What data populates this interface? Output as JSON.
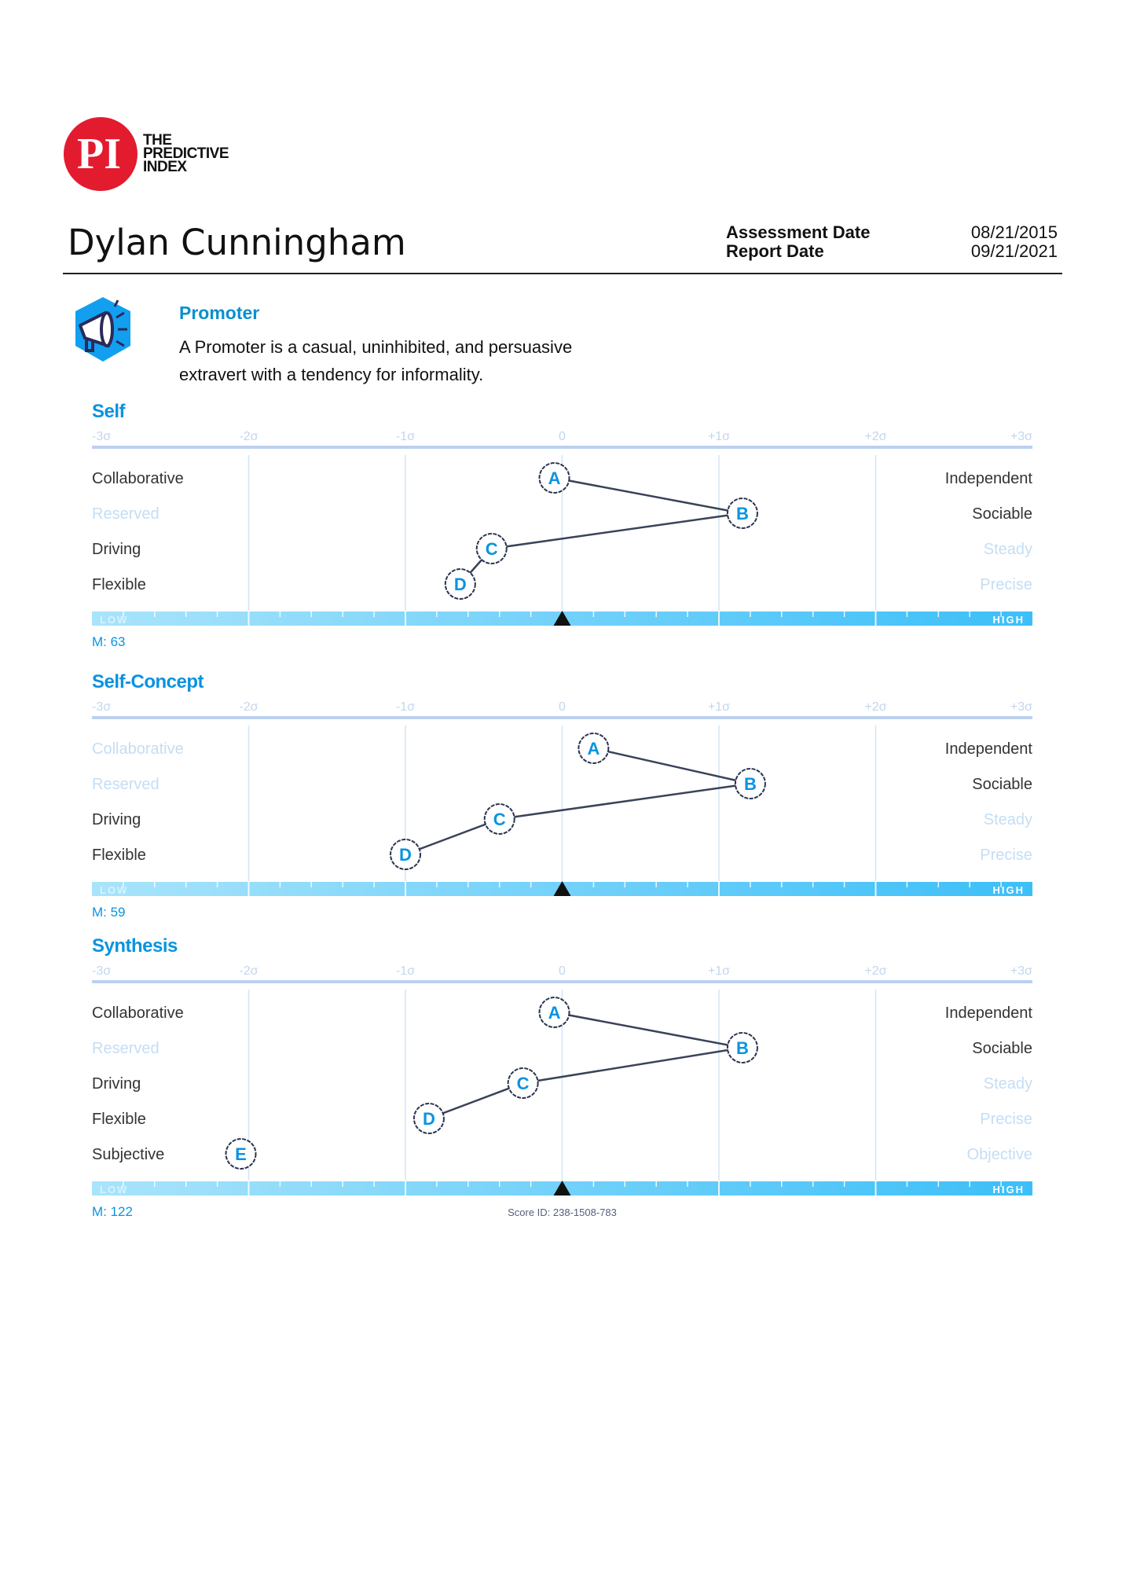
{
  "logo": {
    "mark": "PI",
    "text_lines": [
      "THE",
      "PREDICTIVE",
      "INDEX"
    ],
    "color": "#e31b2f"
  },
  "person": {
    "name": "Dylan Cunningham"
  },
  "dates": {
    "assessment_label": "Assessment Date",
    "assessment_value": "08/21/2015",
    "report_label": "Report Date",
    "report_value": "09/21/2021"
  },
  "profile": {
    "icon": "megaphone-icon",
    "title": "Promoter",
    "description_lines": [
      "A Promoter is a casual, uninhibited, and persuasive",
      "extravert with a tendency for informality."
    ]
  },
  "colors": {
    "accent": "#0a93e0",
    "bar_low": "#a9e4fb",
    "bar_high": "#3cbff8",
    "faded_label": "#c4def4",
    "marker_stroke": "#2b3550"
  },
  "chart_data": [
    {
      "type": "scatter",
      "title": "Self",
      "x_ticks": [
        "-3σ",
        "-2σ",
        "-1σ",
        "0",
        "+1σ",
        "+2σ",
        "+3σ"
      ],
      "xlim": [
        -3,
        3
      ],
      "rows": [
        {
          "marker": "A",
          "value": -0.05,
          "left": "Collaborative",
          "right": "Independent",
          "left_faded": false,
          "right_faded": false
        },
        {
          "marker": "B",
          "value": 1.15,
          "left": "Reserved",
          "right": "Sociable",
          "left_faded": true,
          "right_faded": false
        },
        {
          "marker": "C",
          "value": -0.45,
          "left": "Driving",
          "right": "Steady",
          "left_faded": false,
          "right_faded": true
        },
        {
          "marker": "D",
          "value": -0.65,
          "left": "Flexible",
          "right": "Precise",
          "left_faded": false,
          "right_faded": true
        }
      ],
      "bar": {
        "low": "LOW",
        "high": "HIGH",
        "mean_marker": 0
      },
      "m_label": "M: 63"
    },
    {
      "type": "scatter",
      "title": "Self-Concept",
      "x_ticks": [
        "-3σ",
        "-2σ",
        "-1σ",
        "0",
        "+1σ",
        "+2σ",
        "+3σ"
      ],
      "xlim": [
        -3,
        3
      ],
      "rows": [
        {
          "marker": "A",
          "value": 0.2,
          "left": "Collaborative",
          "right": "Independent",
          "left_faded": true,
          "right_faded": false
        },
        {
          "marker": "B",
          "value": 1.2,
          "left": "Reserved",
          "right": "Sociable",
          "left_faded": true,
          "right_faded": false
        },
        {
          "marker": "C",
          "value": -0.4,
          "left": "Driving",
          "right": "Steady",
          "left_faded": false,
          "right_faded": true
        },
        {
          "marker": "D",
          "value": -1.0,
          "left": "Flexible",
          "right": "Precise",
          "left_faded": false,
          "right_faded": true
        }
      ],
      "bar": {
        "low": "LOW",
        "high": "HIGH",
        "mean_marker": 0
      },
      "m_label": "M: 59"
    },
    {
      "type": "scatter",
      "title": "Synthesis",
      "x_ticks": [
        "-3σ",
        "-2σ",
        "-1σ",
        "0",
        "+1σ",
        "+2σ",
        "+3σ"
      ],
      "xlim": [
        -3,
        3
      ],
      "rows": [
        {
          "marker": "A",
          "value": -0.05,
          "left": "Collaborative",
          "right": "Independent",
          "left_faded": false,
          "right_faded": false
        },
        {
          "marker": "B",
          "value": 1.15,
          "left": "Reserved",
          "right": "Sociable",
          "left_faded": true,
          "right_faded": false
        },
        {
          "marker": "C",
          "value": -0.25,
          "left": "Driving",
          "right": "Steady",
          "left_faded": false,
          "right_faded": true
        },
        {
          "marker": "D",
          "value": -0.85,
          "left": "Flexible",
          "right": "Precise",
          "left_faded": false,
          "right_faded": true
        },
        {
          "marker": "E",
          "value": -2.05,
          "left": "Subjective",
          "right": "Objective",
          "left_faded": false,
          "right_faded": true,
          "unconnected": true
        }
      ],
      "bar": {
        "low": "LOW",
        "high": "HIGH",
        "mean_marker": 0
      },
      "m_label": "M: 122",
      "score_id": "Score ID: 238-1508-783"
    }
  ]
}
